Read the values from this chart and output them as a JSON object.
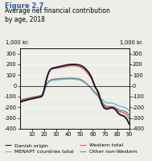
{
  "title_fig": "Figure 2.7",
  "title_main": "Average net financial contribution\nby age, 2018",
  "ylabel_left": "1,000 kr.",
  "ylabel_right": "1,000 kr.",
  "ylim": [
    -400,
    350
  ],
  "xlim": [
    0,
    90
  ],
  "xticks": [
    10,
    20,
    30,
    40,
    50,
    60,
    70,
    80,
    90
  ],
  "yticks": [
    -400,
    -300,
    -200,
    -100,
    0,
    100,
    200,
    300
  ],
  "legend": [
    {
      "label": "Danish origin",
      "color": "#1a1a2e",
      "lw": 1.4
    },
    {
      "label": "Western total",
      "color": "#e06060",
      "lw": 1.1
    },
    {
      "label": "MENAPT countries total",
      "color": "#60c0d8",
      "lw": 1.1
    },
    {
      "label": "Other non-Western",
      "color": "#888888",
      "lw": 1.1
    }
  ],
  "background_color": "#eeeee8",
  "plot_bg": "#eeeee8",
  "ages": [
    0,
    1,
    2,
    3,
    4,
    5,
    6,
    7,
    8,
    9,
    10,
    11,
    12,
    13,
    14,
    15,
    16,
    17,
    18,
    19,
    20,
    21,
    22,
    23,
    24,
    25,
    26,
    27,
    28,
    29,
    30,
    31,
    32,
    33,
    34,
    35,
    36,
    37,
    38,
    39,
    40,
    41,
    42,
    43,
    44,
    45,
    46,
    47,
    48,
    49,
    50,
    51,
    52,
    53,
    54,
    55,
    56,
    57,
    58,
    59,
    60,
    61,
    62,
    63,
    64,
    65,
    66,
    67,
    68,
    69,
    70,
    71,
    72,
    73,
    74,
    75,
    76,
    77,
    78,
    79,
    80,
    81,
    82,
    83,
    84,
    85,
    86,
    87,
    88,
    89,
    90
  ],
  "danish": [
    -150,
    -148,
    -145,
    -140,
    -138,
    -135,
    -130,
    -128,
    -125,
    -122,
    -120,
    -118,
    -115,
    -112,
    -110,
    -108,
    -105,
    -102,
    -100,
    -80,
    -40,
    10,
    60,
    100,
    130,
    150,
    160,
    165,
    168,
    170,
    172,
    175,
    178,
    180,
    183,
    185,
    188,
    190,
    192,
    195,
    197,
    198,
    199,
    200,
    200,
    200,
    199,
    198,
    196,
    194,
    190,
    185,
    178,
    170,
    160,
    148,
    135,
    120,
    100,
    80,
    50,
    20,
    -10,
    -30,
    -50,
    -80,
    -120,
    -150,
    -180,
    -200,
    -210,
    -215,
    -215,
    -212,
    -208,
    -205,
    -205,
    -208,
    -215,
    -225,
    -240,
    -255,
    -265,
    -270,
    -275,
    -278,
    -285,
    -295,
    -310,
    -330,
    -355
  ],
  "western": [
    -140,
    -138,
    -135,
    -130,
    -128,
    -125,
    -120,
    -118,
    -115,
    -112,
    -110,
    -108,
    -105,
    -102,
    -100,
    -98,
    -95,
    -92,
    -90,
    -70,
    -30,
    20,
    70,
    105,
    130,
    148,
    155,
    158,
    160,
    162,
    163,
    165,
    168,
    170,
    172,
    174,
    176,
    178,
    180,
    183,
    185,
    186,
    187,
    188,
    188,
    187,
    186,
    184,
    182,
    180,
    175,
    168,
    160,
    152,
    140,
    128,
    115,
    100,
    82,
    65,
    40,
    15,
    -10,
    -25,
    -40,
    -65,
    -100,
    -130,
    -160,
    -180,
    -195,
    -200,
    -202,
    -200,
    -198,
    -195,
    -195,
    -198,
    -205,
    -215,
    -225,
    -235,
    -240,
    -242,
    -245,
    -248,
    -252,
    -260,
    -270,
    -285,
    -305
  ],
  "menapt": [
    -130,
    -128,
    -125,
    -122,
    -120,
    -118,
    -115,
    -112,
    -110,
    -108,
    -106,
    -104,
    -102,
    -100,
    -98,
    -96,
    -94,
    -92,
    -90,
    -75,
    -50,
    -20,
    5,
    25,
    38,
    45,
    50,
    52,
    53,
    54,
    55,
    56,
    57,
    58,
    59,
    60,
    60,
    61,
    62,
    63,
    63,
    64,
    64,
    64,
    63,
    62,
    61,
    60,
    58,
    56,
    52,
    47,
    41,
    34,
    26,
    17,
    8,
    -2,
    -12,
    -22,
    -35,
    -48,
    -60,
    -70,
    -80,
    -95,
    -110,
    -120,
    -130,
    -140,
    -148,
    -155,
    -158,
    -160,
    -160,
    -160,
    -162,
    -165,
    -168,
    -172,
    -178,
    -185,
    -190,
    -192,
    -195,
    -198,
    -200,
    -205,
    -210,
    -218,
    -230
  ],
  "other_nw": [
    -135,
    -133,
    -130,
    -128,
    -125,
    -122,
    -120,
    -118,
    -115,
    -112,
    -110,
    -108,
    -105,
    -102,
    -100,
    -98,
    -95,
    -92,
    -90,
    -75,
    -50,
    -18,
    10,
    30,
    45,
    52,
    58,
    60,
    62,
    63,
    64,
    65,
    66,
    67,
    68,
    68,
    69,
    70,
    70,
    71,
    71,
    72,
    72,
    72,
    71,
    70,
    69,
    68,
    66,
    64,
    60,
    54,
    47,
    39,
    30,
    20,
    10,
    -2,
    -15,
    -28,
    -42,
    -56,
    -68,
    -78,
    -90,
    -105,
    -122,
    -138,
    -155,
    -170,
    -182,
    -188,
    -192,
    -193,
    -193,
    -193,
    -194,
    -196,
    -200,
    -205,
    -212,
    -220,
    -225,
    -228,
    -230,
    -232,
    -235,
    -240,
    -248,
    -258,
    -272
  ],
  "title_fontsize": 5.5,
  "fig_label_fontsize": 6,
  "axis_fontsize": 4.8,
  "legend_fontsize": 4.5
}
